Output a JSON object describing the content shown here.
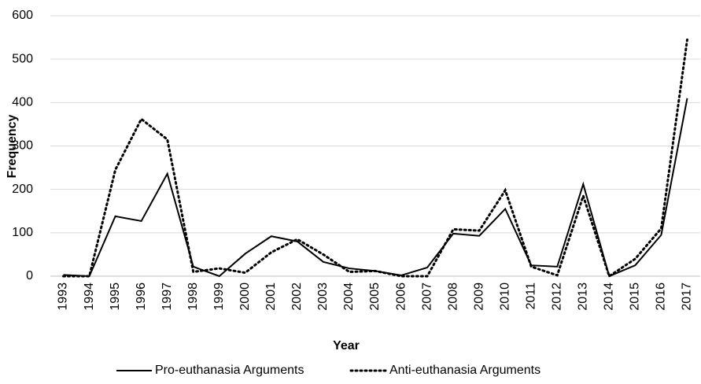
{
  "chart_data": {
    "type": "line",
    "x_label": "Year",
    "y_label": "Frequency",
    "categories": [
      "1993",
      "1994",
      "1995",
      "1996",
      "1997",
      "1998",
      "1999",
      "2000",
      "2001",
      "2002",
      "2003",
      "2004",
      "2005",
      "2006",
      "2007",
      "2008",
      "2009",
      "2010",
      "2011",
      "2012",
      "2013",
      "2014",
      "2015",
      "2016",
      "2017"
    ],
    "series": [
      {
        "name": "Pro-euthanasia Arguments",
        "color": "#000000",
        "style": "solid",
        "values": [
          3,
          0,
          138,
          127,
          236,
          22,
          0,
          52,
          92,
          80,
          33,
          18,
          12,
          2,
          20,
          98,
          93,
          155,
          25,
          22,
          212,
          0,
          25,
          95,
          410
        ]
      },
      {
        "name": "Anti-euthanasia Arguments",
        "color": "#000000",
        "style": "dotted",
        "values": [
          0,
          0,
          245,
          362,
          315,
          10,
          18,
          8,
          55,
          85,
          50,
          10,
          12,
          0,
          0,
          108,
          105,
          198,
          22,
          2,
          185,
          0,
          40,
          110,
          545
        ]
      }
    ],
    "ylim": [
      0,
      600
    ],
    "yticks": [
      0,
      100,
      200,
      300,
      400,
      500,
      600
    ],
    "grid": true,
    "legend": "bottom"
  }
}
